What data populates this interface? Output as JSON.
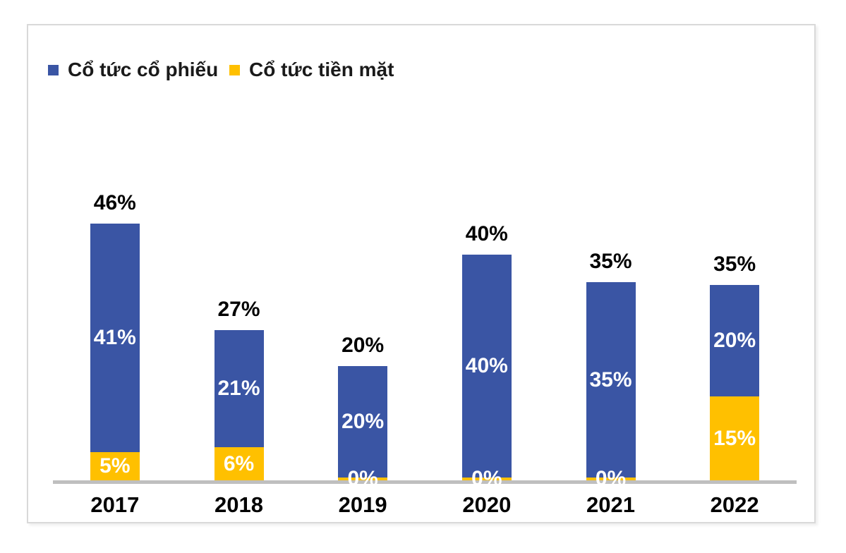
{
  "legend": {
    "items": [
      {
        "label": "Cổ tức cổ phiếu",
        "color": "#3a55a4"
      },
      {
        "label": "Cổ tức tiền mặt",
        "color": "#ffc000"
      }
    ],
    "position": "top-left"
  },
  "chart_data": {
    "type": "bar",
    "stacked": true,
    "title": "",
    "xlabel": "",
    "ylabel": "",
    "axis_visible": false,
    "gridlines": false,
    "ylim": [
      0,
      50
    ],
    "unit": "%",
    "categories": [
      "2017",
      "2018",
      "2019",
      "2020",
      "2021",
      "2022"
    ],
    "series": [
      {
        "name": "Cổ tức cổ phiếu",
        "color": "#3a55a4",
        "values": [
          41,
          21,
          20,
          40,
          35,
          20
        ],
        "labels": [
          "41%",
          "21%",
          "20%",
          "40%",
          "35%",
          "20%"
        ]
      },
      {
        "name": "Cổ tức tiền mặt",
        "color": "#ffc000",
        "values": [
          5,
          6,
          0,
          0,
          0,
          15
        ],
        "labels": [
          "5%",
          "6%",
          "0%",
          "0%",
          "0%",
          "15%"
        ]
      }
    ],
    "totals": [
      46,
      27,
      20,
      40,
      35,
      35
    ],
    "total_labels": [
      "46%",
      "27%",
      "20%",
      "40%",
      "35%",
      "35%"
    ],
    "label_color_inside": "#ffffff",
    "label_color_outside": "#000000",
    "baseline_color": "#bfbfbf"
  }
}
